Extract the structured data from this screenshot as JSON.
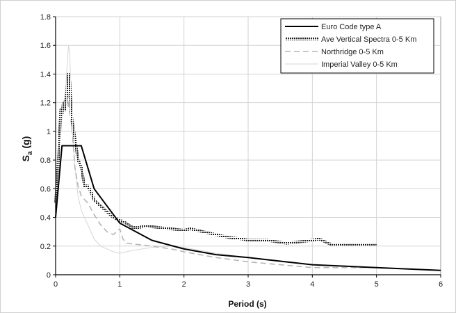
{
  "chart_data": {
    "type": "line",
    "title": "",
    "xlabel": "Period (s)",
    "ylabel_main": "S",
    "ylabel_sub": "a",
    "ylabel_unit": " (g)",
    "xlim": [
      0,
      6
    ],
    "ylim": [
      0,
      1.8
    ],
    "xticks": [
      "0",
      "1",
      "2",
      "3",
      "4",
      "5",
      "6"
    ],
    "yticks": [
      "0",
      "0.2",
      "0.4",
      "0.6",
      "0.8",
      "1",
      "1.2",
      "1.4",
      "1.6",
      "1.8"
    ],
    "grid": true,
    "legend_position": "top-right",
    "series": [
      {
        "name": "Euro Code type A",
        "color": "#000000",
        "style": "solid-thick",
        "points": [
          [
            0,
            0.4
          ],
          [
            0.1,
            0.9
          ],
          [
            0.4,
            0.9
          ],
          [
            0.6,
            0.6
          ],
          [
            1.0,
            0.36
          ],
          [
            1.5,
            0.24
          ],
          [
            2.0,
            0.18
          ],
          [
            2.5,
            0.14
          ],
          [
            3.0,
            0.12
          ],
          [
            4.0,
            0.07
          ],
          [
            5.0,
            0.05
          ],
          [
            6.0,
            0.03
          ]
        ]
      },
      {
        "name": "Ave Vertical Spectra 0-5 Km",
        "color": "#333333",
        "style": "hatched",
        "points": [
          [
            0,
            0.5
          ],
          [
            0.05,
            0.85
          ],
          [
            0.08,
            1.15
          ],
          [
            0.1,
            1.12
          ],
          [
            0.12,
            1.2
          ],
          [
            0.15,
            1.15
          ],
          [
            0.18,
            1.3
          ],
          [
            0.2,
            1.4
          ],
          [
            0.22,
            1.35
          ],
          [
            0.25,
            1.1
          ],
          [
            0.3,
            0.95
          ],
          [
            0.35,
            0.8
          ],
          [
            0.4,
            0.75
          ],
          [
            0.45,
            0.62
          ],
          [
            0.5,
            0.62
          ],
          [
            0.55,
            0.58
          ],
          [
            0.6,
            0.52
          ],
          [
            0.7,
            0.48
          ],
          [
            0.8,
            0.44
          ],
          [
            0.9,
            0.4
          ],
          [
            1.0,
            0.38
          ],
          [
            1.1,
            0.36
          ],
          [
            1.2,
            0.33
          ],
          [
            1.3,
            0.33
          ],
          [
            1.4,
            0.34
          ],
          [
            1.6,
            0.33
          ],
          [
            1.8,
            0.32
          ],
          [
            2.0,
            0.31
          ],
          [
            2.1,
            0.32
          ],
          [
            2.3,
            0.3
          ],
          [
            2.5,
            0.28
          ],
          [
            2.7,
            0.26
          ],
          [
            2.9,
            0.25
          ],
          [
            3.0,
            0.24
          ],
          [
            3.3,
            0.24
          ],
          [
            3.6,
            0.22
          ],
          [
            3.8,
            0.23
          ],
          [
            4.0,
            0.24
          ],
          [
            4.1,
            0.25
          ],
          [
            4.2,
            0.23
          ],
          [
            4.3,
            0.21
          ],
          [
            4.6,
            0.21
          ],
          [
            5.0,
            0.21
          ]
        ]
      },
      {
        "name": "Northridge 0-5 Km",
        "color": "#b5b5b5",
        "style": "dashed",
        "points": [
          [
            0,
            0.55
          ],
          [
            0.05,
            0.95
          ],
          [
            0.1,
            1.15
          ],
          [
            0.15,
            1.25
          ],
          [
            0.18,
            1.35
          ],
          [
            0.2,
            1.18
          ],
          [
            0.25,
            1.05
          ],
          [
            0.3,
            0.75
          ],
          [
            0.35,
            0.62
          ],
          [
            0.4,
            0.55
          ],
          [
            0.5,
            0.5
          ],
          [
            0.6,
            0.42
          ],
          [
            0.7,
            0.35
          ],
          [
            0.8,
            0.3
          ],
          [
            0.9,
            0.28
          ],
          [
            1.0,
            0.32
          ],
          [
            1.05,
            0.25
          ],
          [
            1.1,
            0.22
          ],
          [
            1.3,
            0.21
          ],
          [
            1.5,
            0.2
          ],
          [
            1.8,
            0.18
          ],
          [
            2.0,
            0.16
          ],
          [
            2.5,
            0.12
          ],
          [
            3.0,
            0.09
          ],
          [
            3.5,
            0.07
          ],
          [
            4.0,
            0.05
          ],
          [
            4.5,
            0.05
          ],
          [
            5.0,
            0.05
          ]
        ]
      },
      {
        "name": "Imperial Valley 0-5 Km",
        "color": "#d6d6d6",
        "style": "thin",
        "points": [
          [
            0,
            0.5
          ],
          [
            0.05,
            0.9
          ],
          [
            0.1,
            1.1
          ],
          [
            0.15,
            1.25
          ],
          [
            0.18,
            1.45
          ],
          [
            0.2,
            1.6
          ],
          [
            0.22,
            1.55
          ],
          [
            0.25,
            1.05
          ],
          [
            0.3,
            0.75
          ],
          [
            0.35,
            0.55
          ],
          [
            0.4,
            0.45
          ],
          [
            0.5,
            0.35
          ],
          [
            0.6,
            0.25
          ],
          [
            0.7,
            0.2
          ],
          [
            0.8,
            0.18
          ],
          [
            0.9,
            0.16
          ],
          [
            1.0,
            0.15
          ],
          [
            1.2,
            0.17
          ],
          [
            1.5,
            0.19
          ],
          [
            1.8,
            0.2
          ],
          [
            2.0,
            0.19
          ],
          [
            2.5,
            0.15
          ],
          [
            3.0,
            0.12
          ],
          [
            3.5,
            0.09
          ],
          [
            4.0,
            0.07
          ],
          [
            4.5,
            0.06
          ],
          [
            5.0,
            0.05
          ]
        ]
      }
    ]
  }
}
